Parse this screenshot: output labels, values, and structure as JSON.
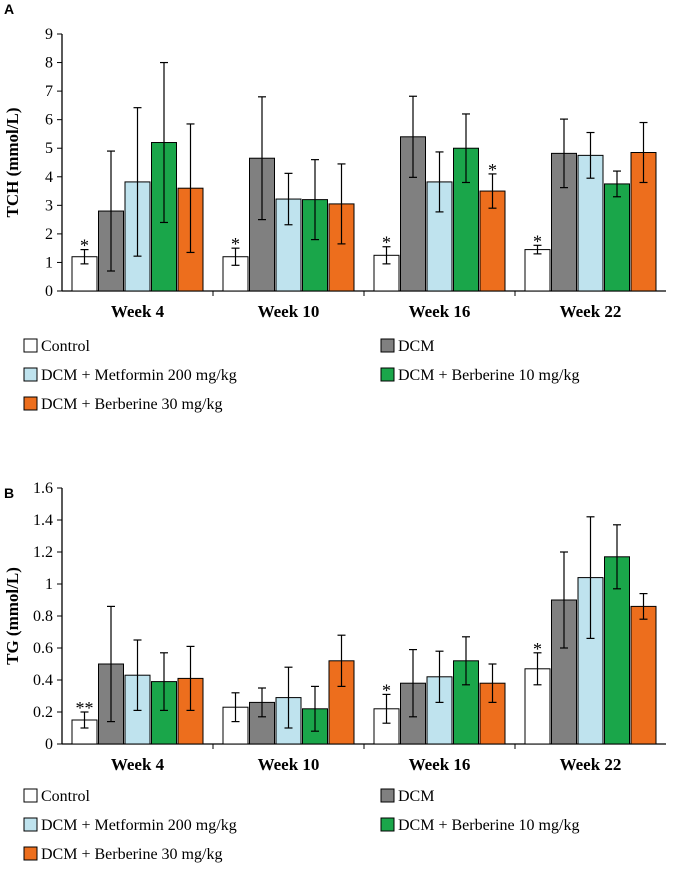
{
  "colors": {
    "Control": "#ffffff",
    "DCM": "#808080",
    "DCM + Metformin 200 mg/kg": "#bfe3ee",
    "DCM + Berberine 10 mg/kg": "#1aa64a",
    "DCM + Berberine 30 mg/kg": "#ed6e1d"
  },
  "chart_data": [
    {
      "type": "bar",
      "panel": "A",
      "ylabel": "TCH (mmol/L)",
      "ylim": [
        0,
        9
      ],
      "yticks": [
        "0",
        "1",
        "2",
        "3",
        "4",
        "5",
        "6",
        "7",
        "8",
        "9"
      ],
      "categories": [
        "Week 4",
        "Week 10",
        "Week 16",
        "Week 22"
      ],
      "legend": [
        "Control",
        "DCM",
        "DCM + Metformin 200 mg/kg",
        "DCM + Berberine 10 mg/kg",
        "DCM + Berberine 30 mg/kg"
      ],
      "series": [
        {
          "name": "Control",
          "values": [
            1.2,
            1.2,
            1.25,
            1.45
          ],
          "errors": [
            0.25,
            0.3,
            0.3,
            0.15
          ],
          "marks": [
            "*",
            "*",
            "*",
            "*"
          ]
        },
        {
          "name": "DCM",
          "values": [
            2.8,
            4.65,
            5.4,
            4.82
          ],
          "errors": [
            2.1,
            2.15,
            1.42,
            1.2
          ],
          "marks": [
            "",
            "",
            "",
            ""
          ]
        },
        {
          "name": "DCM + Metformin 200 mg/kg",
          "values": [
            3.82,
            3.22,
            3.82,
            4.75
          ],
          "errors": [
            2.6,
            0.9,
            1.05,
            0.8
          ],
          "marks": [
            "",
            "",
            "",
            ""
          ]
        },
        {
          "name": "DCM + Berberine 10 mg/kg",
          "values": [
            5.2,
            3.2,
            5.0,
            3.75
          ],
          "errors": [
            2.8,
            1.4,
            1.2,
            0.45
          ],
          "marks": [
            "",
            "",
            "",
            ""
          ]
        },
        {
          "name": "DCM + Berberine 30 mg/kg",
          "values": [
            3.6,
            3.05,
            3.5,
            4.85
          ],
          "errors": [
            2.25,
            1.4,
            0.6,
            1.05
          ],
          "marks": [
            "",
            "",
            "*",
            ""
          ]
        }
      ]
    },
    {
      "type": "bar",
      "panel": "B",
      "ylabel": "TG (mmol/L)",
      "ylim": [
        0,
        1.6
      ],
      "yticks": [
        "0",
        "0.2",
        "0.4",
        "0.6",
        "0.8",
        "1",
        "1.2",
        "1.4",
        "1.6"
      ],
      "categories": [
        "Week 4",
        "Week 10",
        "Week 16",
        "Week 22"
      ],
      "legend": [
        "Control",
        "DCM",
        "DCM + Metformin 200 mg/kg",
        "DCM + Berberine 10 mg/kg",
        "DCM + Berberine 30 mg/kg"
      ],
      "series": [
        {
          "name": "Control",
          "values": [
            0.15,
            0.23,
            0.22,
            0.47
          ],
          "errors": [
            0.05,
            0.09,
            0.09,
            0.1
          ],
          "marks": [
            "**",
            "",
            "*",
            "*"
          ]
        },
        {
          "name": "DCM",
          "values": [
            0.5,
            0.26,
            0.38,
            0.9
          ],
          "errors": [
            0.36,
            0.09,
            0.21,
            0.3
          ],
          "marks": [
            "",
            "",
            "",
            ""
          ]
        },
        {
          "name": "DCM + Metformin 200 mg/kg",
          "values": [
            0.43,
            0.29,
            0.42,
            1.04
          ],
          "errors": [
            0.22,
            0.19,
            0.16,
            0.38
          ],
          "marks": [
            "",
            "",
            "",
            ""
          ]
        },
        {
          "name": "DCM + Berberine 10 mg/kg",
          "values": [
            0.39,
            0.22,
            0.52,
            1.17
          ],
          "errors": [
            0.18,
            0.14,
            0.15,
            0.2
          ],
          "marks": [
            "",
            "",
            "",
            ""
          ]
        },
        {
          "name": "DCM + Berberine 30 mg/kg",
          "values": [
            0.41,
            0.52,
            0.38,
            0.86
          ],
          "errors": [
            0.2,
            0.16,
            0.12,
            0.08
          ],
          "marks": [
            "",
            "",
            "",
            ""
          ]
        }
      ]
    }
  ]
}
